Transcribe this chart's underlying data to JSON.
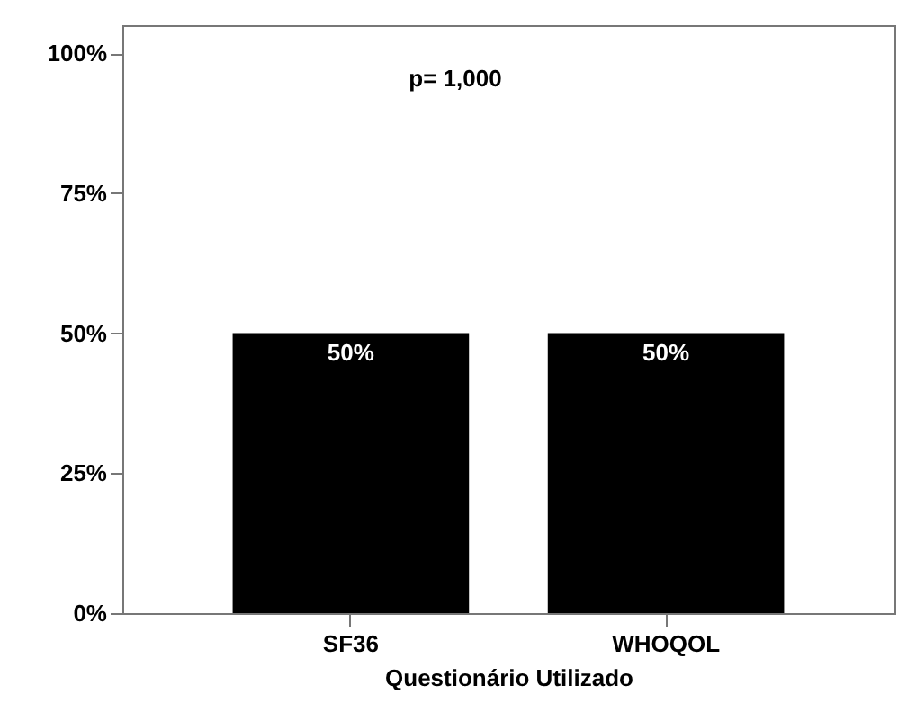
{
  "chart_data": {
    "type": "bar",
    "xlabel": "Questionário Utilizado",
    "categories": [
      "SF36",
      "WHOQOL"
    ],
    "values": [
      50,
      50
    ],
    "color": "#000000",
    "value_labels": [
      "50%",
      "50%"
    ],
    "ylim": [
      0,
      105
    ],
    "yticks": [
      {
        "value": 0,
        "label": "0%"
      },
      {
        "value": 25,
        "label": "25%"
      },
      {
        "value": 50,
        "label": "50%"
      },
      {
        "value": 75,
        "label": "75%"
      },
      {
        "value": 100,
        "label": "100%"
      }
    ],
    "annotations": [
      "p= 1,000"
    ]
  }
}
